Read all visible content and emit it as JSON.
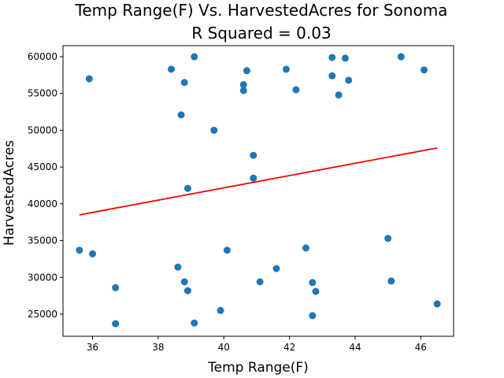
{
  "chart_data": {
    "type": "scatter",
    "title": "Temp Range(F) Vs. HarvestedAcres for Sonoma",
    "subtitle": "R Squared =  0.03",
    "xlabel": "Temp Range(F)",
    "ylabel": "HarvestedAcres",
    "xlim": [
      35.1,
      47.0
    ],
    "ylim": [
      22000,
      61500
    ],
    "xticks": [
      36,
      38,
      40,
      42,
      44,
      46
    ],
    "yticks": [
      25000,
      30000,
      35000,
      40000,
      45000,
      50000,
      55000,
      60000
    ],
    "grid": false,
    "marker_color": "#1f77b4",
    "line_color": "#ff0000",
    "points": [
      {
        "x": 35.6,
        "y": 33700
      },
      {
        "x": 35.9,
        "y": 57000
      },
      {
        "x": 36.0,
        "y": 33200
      },
      {
        "x": 36.7,
        "y": 28600
      },
      {
        "x": 36.7,
        "y": 23700
      },
      {
        "x": 38.4,
        "y": 58300
      },
      {
        "x": 38.6,
        "y": 31400
      },
      {
        "x": 38.7,
        "y": 52100
      },
      {
        "x": 38.8,
        "y": 56500
      },
      {
        "x": 38.8,
        "y": 29400
      },
      {
        "x": 38.9,
        "y": 42100
      },
      {
        "x": 38.9,
        "y": 28200
      },
      {
        "x": 39.1,
        "y": 60000
      },
      {
        "x": 39.1,
        "y": 23800
      },
      {
        "x": 39.7,
        "y": 50000
      },
      {
        "x": 39.9,
        "y": 25500
      },
      {
        "x": 40.1,
        "y": 33700
      },
      {
        "x": 40.6,
        "y": 56200
      },
      {
        "x": 40.6,
        "y": 55400
      },
      {
        "x": 40.7,
        "y": 58100
      },
      {
        "x": 40.9,
        "y": 46600
      },
      {
        "x": 40.9,
        "y": 43500
      },
      {
        "x": 41.1,
        "y": 29400
      },
      {
        "x": 41.6,
        "y": 31200
      },
      {
        "x": 41.9,
        "y": 58300
      },
      {
        "x": 42.2,
        "y": 55500
      },
      {
        "x": 42.5,
        "y": 34000
      },
      {
        "x": 42.7,
        "y": 29300
      },
      {
        "x": 42.7,
        "y": 24800
      },
      {
        "x": 42.8,
        "y": 28100
      },
      {
        "x": 43.3,
        "y": 59900
      },
      {
        "x": 43.3,
        "y": 57400
      },
      {
        "x": 43.5,
        "y": 54800
      },
      {
        "x": 43.7,
        "y": 59800
      },
      {
        "x": 43.8,
        "y": 56800
      },
      {
        "x": 45.0,
        "y": 35300
      },
      {
        "x": 45.1,
        "y": 29500
      },
      {
        "x": 45.4,
        "y": 60000
      },
      {
        "x": 46.1,
        "y": 58200
      },
      {
        "x": 46.5,
        "y": 26400
      }
    ],
    "regression_line": {
      "x": [
        35.6,
        46.5
      ],
      "y": [
        38500,
        47600
      ]
    }
  }
}
